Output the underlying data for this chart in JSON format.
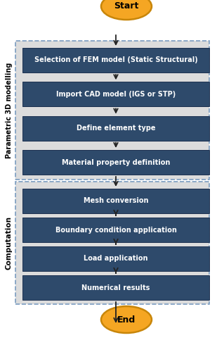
{
  "box_color": "#2E4A6B",
  "box_text_color": "#FFFFFF",
  "oval_fill": "#F5A623",
  "oval_stroke": "#C8860A",
  "arrow_color": "#222222",
  "section1_bg": "#DCDCDC",
  "section2_bg": "#DCDCDC",
  "section_border": "#7A9CC0",
  "section1_label": "Parametric 3D modelling",
  "section2_label": "Computation",
  "steps_section1": [
    "Selection of FEM model (Static Structural)",
    "Import CAD model (IGS or STP)",
    "Define element type",
    "Material property definition"
  ],
  "steps_section2": [
    "Mesh conversion",
    "Boundary condition application",
    "Load application",
    "Numerical results"
  ],
  "start_label": "Start",
  "end_label": "End",
  "fig_width": 3.19,
  "fig_height": 5.0,
  "dpi": 100
}
